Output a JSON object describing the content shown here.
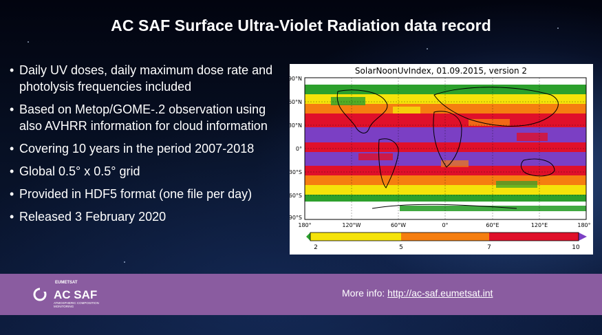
{
  "slide": {
    "title": "AC SAF Surface Ultra-Violet Radiation data record",
    "bullets": [
      "Daily UV doses, daily maximum dose rate and photolysis frequencies included",
      "Based on Metop/GOME-.2 observation using also AVHRR information for cloud information",
      "Covering 10 years in the period 2007-2018",
      "Global 0.5° x 0.5° grid",
      "Provided in HDF5 format (one file per day)",
      "Released 3 February 2020"
    ]
  },
  "figure": {
    "title": "SolarNoonUvIndex, 01.09.2015, version 2",
    "lat_labels": [
      "90°N",
      "60°N",
      "30°N",
      "0°",
      "30°S",
      "60°S",
      "90°S"
    ],
    "lon_labels": [
      "180°",
      "120°W",
      "60°W",
      "0°",
      "60°E",
      "120°E",
      "180°"
    ],
    "colorbar_ticks": [
      "2",
      "5",
      "7",
      "10"
    ],
    "colors": {
      "green": "#2ca02c",
      "yellow": "#f5e30a",
      "orange": "#f57e10",
      "red": "#e0102a",
      "purple": "#7b3fc4"
    }
  },
  "footer": {
    "logo_top": "EUMETSAT",
    "logo_main": "AC SAF",
    "logo_sub1": "ATMOSPHERIC COMPOSITION",
    "logo_sub2": "MONITORING",
    "more_info_label": "More info:",
    "more_info_link": "http://ac-saf.eumetsat.int"
  }
}
